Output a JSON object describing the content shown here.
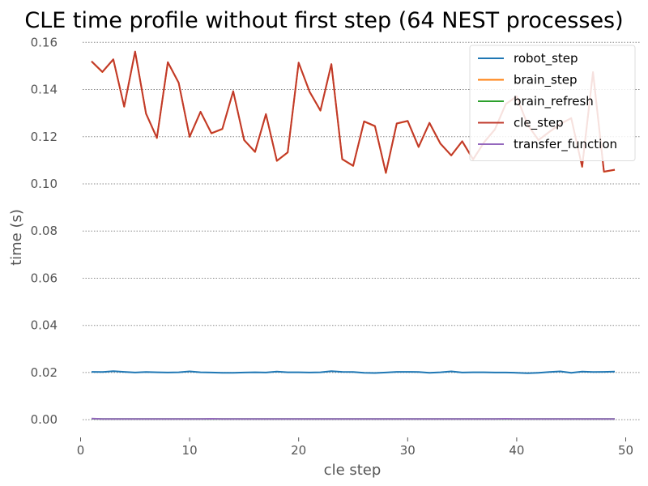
{
  "chart_data": {
    "type": "line",
    "title": "CLE time profile without first step (64 NEST processes)",
    "xlabel": "cle step",
    "ylabel": "time (s)",
    "xlim": [
      -1.3,
      51.3
    ],
    "ylim": [
      -0.0075,
      0.1625
    ],
    "x_ticks": [
      0,
      10,
      20,
      30,
      40,
      50
    ],
    "x_tick_labels": [
      "0",
      "10",
      "20",
      "30",
      "40",
      "50"
    ],
    "y_ticks": [
      0.0,
      0.02,
      0.04,
      0.06,
      0.08,
      0.1,
      0.12,
      0.14,
      0.16
    ],
    "y_tick_labels": [
      "0.00",
      "0.02",
      "0.04",
      "0.06",
      "0.08",
      "0.10",
      "0.12",
      "0.14",
      "0.16"
    ],
    "grid": "horizontal dotted",
    "legend_position": "top-right",
    "x": [
      1,
      2,
      3,
      4,
      5,
      6,
      7,
      8,
      9,
      10,
      11,
      12,
      13,
      14,
      15,
      16,
      17,
      18,
      19,
      20,
      21,
      22,
      23,
      24,
      25,
      26,
      27,
      28,
      29,
      30,
      31,
      32,
      33,
      34,
      35,
      36,
      37,
      38,
      39,
      40,
      41,
      42,
      43,
      44,
      45,
      46,
      47,
      48,
      49
    ],
    "series": [
      {
        "name": "robot_step",
        "color": "#1f77b4",
        "values": [
          0.0203,
          0.0202,
          0.0206,
          0.0203,
          0.02,
          0.0202,
          0.0201,
          0.02,
          0.0201,
          0.0205,
          0.0201,
          0.02,
          0.0199,
          0.0199,
          0.02,
          0.0201,
          0.02,
          0.0204,
          0.0201,
          0.0201,
          0.02,
          0.0201,
          0.0206,
          0.0203,
          0.0202,
          0.0199,
          0.0198,
          0.02,
          0.0203,
          0.0203,
          0.0202,
          0.0199,
          0.0201,
          0.0205,
          0.02,
          0.0201,
          0.0201,
          0.02,
          0.02,
          0.0199,
          0.0197,
          0.0199,
          0.0202,
          0.0205,
          0.0199,
          0.0204,
          0.0202,
          0.0203,
          0.0204
        ]
      },
      {
        "name": "brain_step",
        "color": "#ff7f0e",
        "values": [
          0.1519,
          0.1474,
          0.1527,
          0.1327,
          0.156,
          0.1297,
          0.1194,
          0.1515,
          0.1428,
          0.1199,
          0.1305,
          0.1214,
          0.1232,
          0.1392,
          0.1185,
          0.1135,
          0.1295,
          0.1097,
          0.1133,
          0.1513,
          0.139,
          0.131,
          0.1507,
          0.1104,
          0.1076,
          0.1264,
          0.1244,
          0.1046,
          0.1255,
          0.1266,
          0.1156,
          0.1258,
          0.117,
          0.112,
          0.118,
          0.1103,
          0.1175,
          0.123,
          0.1338,
          0.137,
          0.125,
          0.1185,
          0.122,
          0.1253,
          0.1278,
          0.1072,
          0.1473,
          0.1051,
          0.1059
        ]
      },
      {
        "name": "brain_refresh",
        "color": "#2ca02c",
        "values": [
          0.0004,
          0.0003,
          0.0003,
          0.0003,
          0.0003,
          0.0003,
          0.0003,
          0.0003,
          0.0003,
          0.0003,
          0.0003,
          0.0003,
          0.0003,
          0.0003,
          0.0003,
          0.0003,
          0.0003,
          0.0003,
          0.0003,
          0.0003,
          0.0003,
          0.0003,
          0.0003,
          0.0003,
          0.0003,
          0.0003,
          0.0003,
          0.0003,
          0.0003,
          0.0003,
          0.0003,
          0.0003,
          0.0003,
          0.0003,
          0.0003,
          0.0003,
          0.0003,
          0.0003,
          0.0003,
          0.0003,
          0.0003,
          0.0003,
          0.0003,
          0.0003,
          0.0003,
          0.0003,
          0.0003,
          0.0003,
          0.0003
        ]
      },
      {
        "name": "cle_step",
        "color": "#c0392b",
        "values": [
          0.152,
          0.1475,
          0.1528,
          0.1328,
          0.1561,
          0.1298,
          0.1195,
          0.1516,
          0.1429,
          0.12,
          0.1306,
          0.1215,
          0.1233,
          0.1393,
          0.1186,
          0.1136,
          0.1296,
          0.1098,
          0.1134,
          0.1514,
          0.1391,
          0.1311,
          0.1508,
          0.1105,
          0.1077,
          0.1265,
          0.1245,
          0.1047,
          0.1256,
          0.1267,
          0.1157,
          0.1259,
          0.1171,
          0.1121,
          0.1181,
          0.1104,
          0.1176,
          0.1231,
          0.1339,
          0.1371,
          0.1251,
          0.1186,
          0.1221,
          0.1254,
          0.1279,
          0.1073,
          0.1474,
          0.1052,
          0.106
        ]
      },
      {
        "name": "transfer_function",
        "color": "#9467bd",
        "values": [
          0.0005,
          0.0003,
          0.0003,
          0.0003,
          0.0003,
          0.0003,
          0.0003,
          0.0003,
          0.0003,
          0.0003,
          0.0003,
          0.0004,
          0.0003,
          0.0003,
          0.0003,
          0.0003,
          0.0003,
          0.0003,
          0.0003,
          0.0003,
          0.0003,
          0.0003,
          0.0003,
          0.0003,
          0.0003,
          0.0003,
          0.0003,
          0.0003,
          0.0003,
          0.0003,
          0.0003,
          0.0003,
          0.0003,
          0.0003,
          0.0003,
          0.0003,
          0.0003,
          0.0003,
          0.0004,
          0.0003,
          0.0003,
          0.0003,
          0.0003,
          0.0003,
          0.0003,
          0.0003,
          0.0003,
          0.0003,
          0.0003
        ]
      }
    ]
  }
}
